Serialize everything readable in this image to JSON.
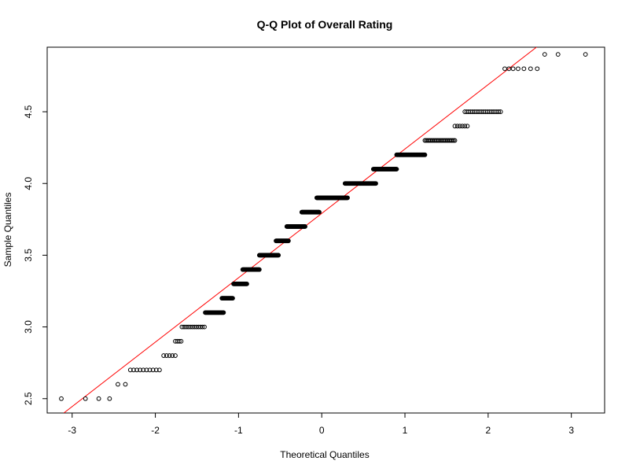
{
  "chart_data": {
    "type": "scatter",
    "title": "Q-Q Plot of Overall Rating",
    "xlabel": "Theoretical Quantiles",
    "ylabel": "Sample Quantiles",
    "xlim": [
      -3.3,
      3.4
    ],
    "ylim": [
      2.4,
      4.95
    ],
    "x_ticks": [
      -3,
      -2,
      -1,
      0,
      1,
      2,
      3
    ],
    "y_ticks": [
      2.5,
      3.0,
      3.5,
      4.0,
      4.5
    ],
    "x_tick_labels": [
      "-3",
      "-2",
      "-1",
      "0",
      "1",
      "2",
      "3"
    ],
    "y_tick_labels": [
      "2.5",
      "3.0",
      "3.5",
      "4.0",
      "4.5"
    ],
    "grid": false,
    "reference_line": {
      "color": "#ff0000",
      "points": [
        [
          -3.1,
          2.4
        ],
        [
          2.67,
          4.99
        ]
      ]
    },
    "point_style": {
      "shape": "open-circle",
      "color": "#000000"
    },
    "groups": [
      {
        "y": 2.5,
        "x": [
          -3.13,
          -2.84,
          -2.68,
          -2.55
        ]
      },
      {
        "y": 2.6,
        "x": [
          -2.45,
          -2.36
        ]
      },
      {
        "y": 2.7,
        "x_range": [
          -2.3,
          -1.95
        ],
        "count": 10
      },
      {
        "y": 2.8,
        "x_range": [
          -1.9,
          -1.76
        ],
        "count": 5
      },
      {
        "y": 2.9,
        "x_range": [
          -1.76,
          -1.69
        ],
        "count": 4
      },
      {
        "y": 3.0,
        "x_range": [
          -1.68,
          -1.41
        ],
        "count": 12
      },
      {
        "y": 3.1,
        "x_range": [
          -1.4,
          -1.18
        ],
        "count": 30
      },
      {
        "y": 3.2,
        "x_range": [
          -1.2,
          -1.07
        ],
        "count": 20
      },
      {
        "y": 3.3,
        "x_range": [
          -1.06,
          -0.9
        ],
        "count": 25
      },
      {
        "y": 3.4,
        "x_range": [
          -0.95,
          -0.75
        ],
        "count": 30
      },
      {
        "y": 3.5,
        "x_range": [
          -0.75,
          -0.52
        ],
        "count": 35
      },
      {
        "y": 3.6,
        "x_range": [
          -0.55,
          -0.4
        ],
        "count": 25
      },
      {
        "y": 3.7,
        "x_range": [
          -0.42,
          -0.2
        ],
        "count": 35
      },
      {
        "y": 3.8,
        "x_range": [
          -0.24,
          -0.03
        ],
        "count": 35
      },
      {
        "y": 3.9,
        "x_range": [
          -0.06,
          0.31
        ],
        "count": 60
      },
      {
        "y": 4.0,
        "x_range": [
          0.28,
          0.65
        ],
        "count": 60
      },
      {
        "y": 4.1,
        "x_range": [
          0.62,
          0.9
        ],
        "count": 45
      },
      {
        "y": 4.2,
        "x_range": [
          0.9,
          1.24
        ],
        "count": 55
      },
      {
        "y": 4.3,
        "x_range": [
          1.24,
          1.6
        ],
        "count": 25
      },
      {
        "y": 4.4,
        "x_range": [
          1.6,
          1.75
        ],
        "count": 6
      },
      {
        "y": 4.5,
        "x_range": [
          1.72,
          2.15
        ],
        "count": 20
      },
      {
        "y": 4.8,
        "x": [
          2.2,
          2.25,
          2.3,
          2.36,
          2.43,
          2.51,
          2.59
        ]
      },
      {
        "y": 4.9,
        "x": [
          2.68,
          2.84,
          3.17
        ]
      }
    ]
  }
}
